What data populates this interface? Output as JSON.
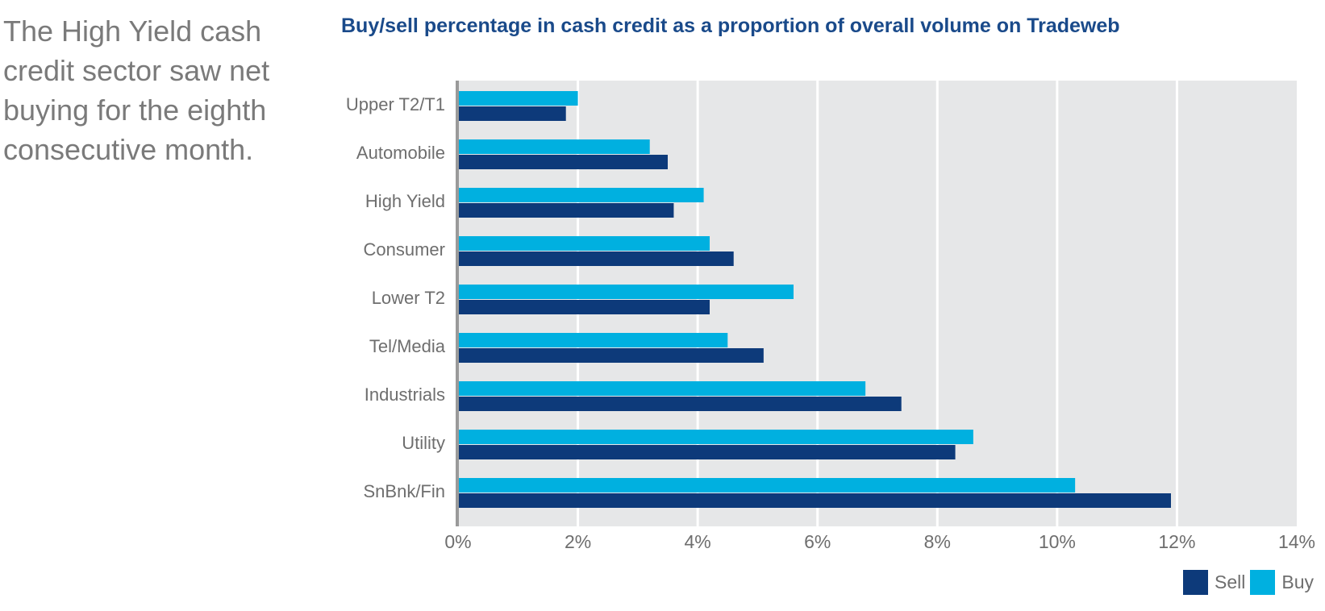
{
  "headline": "The High Yield cash credit sector saw net buying for the eighth consecutive month.",
  "colors": {
    "sell": "#0d3a7a",
    "buy": "#00b0e0",
    "plot_bg": "#e6e7e8",
    "grid": "#ffffff",
    "axis": "#9a9a9a"
  },
  "chart_data": {
    "type": "bar",
    "orientation": "horizontal",
    "title": "Buy/sell percentage in cash credit as a proportion of overall volume on Tradeweb",
    "categories": [
      "Upper T2/T1",
      "Automobile",
      "High Yield",
      "Consumer",
      "Lower T2",
      "Tel/Media",
      "Industrials",
      "Utility",
      "SnBnk/Fin"
    ],
    "series": [
      {
        "name": "Buy",
        "values": [
          2.0,
          3.2,
          4.1,
          4.2,
          5.6,
          4.5,
          6.8,
          8.6,
          10.3
        ]
      },
      {
        "name": "Sell",
        "values": [
          1.8,
          3.5,
          3.6,
          4.6,
          4.2,
          5.1,
          7.4,
          8.3,
          11.9
        ]
      }
    ],
    "xlim": [
      0,
      14
    ],
    "xticks": [
      "0%",
      "2%",
      "4%",
      "6%",
      "8%",
      "10%",
      "12%",
      "14%"
    ],
    "grid": true,
    "legend": {
      "placement": "bottom-right",
      "items": [
        "Sell",
        "Buy"
      ]
    }
  }
}
